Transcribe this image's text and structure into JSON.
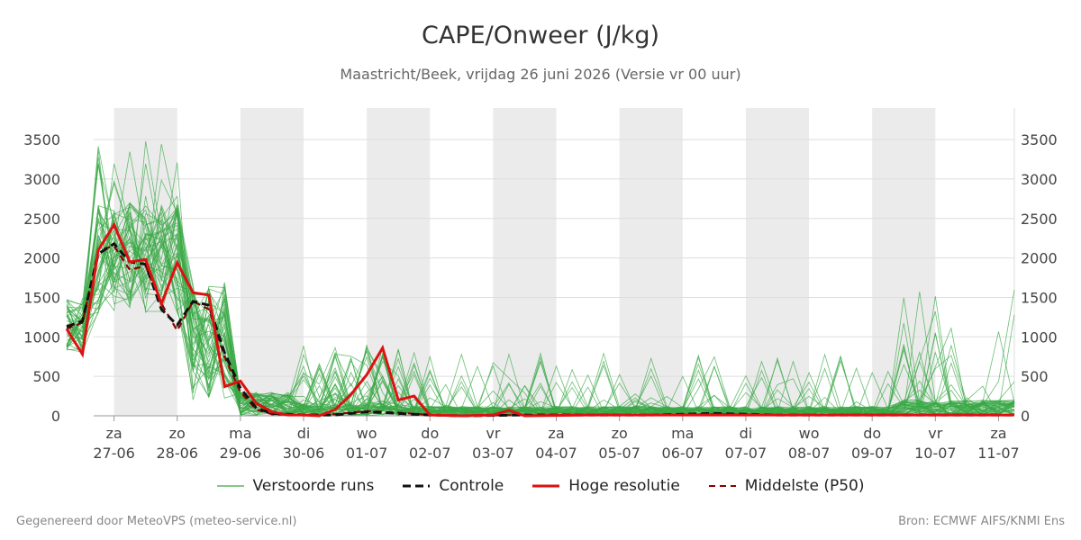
{
  "title": "CAPE/Onweer (J/kg)",
  "subtitle": "Maastricht/Beek, vrijdag 26 juni 2026 (Versie vr 00 uur)",
  "footer": {
    "left": "Gegenereerd door MeteoVPS (meteo-service.nl)",
    "right": "Bron: ECMWF AIFS/KNMI Ens"
  },
  "colors": {
    "ensemble": "#3aa845",
    "control": "#111111",
    "hires": "#dd1111",
    "median": "#8b0000",
    "shade": "#ebebeb",
    "grid": "#dddddd"
  },
  "legend": [
    {
      "key": "ensemble",
      "label": "Verstoorde runs"
    },
    {
      "key": "control",
      "label": "Controle"
    },
    {
      "key": "hires",
      "label": "Hoge resolutie"
    },
    {
      "key": "median",
      "label": "Middelste (P50)"
    }
  ],
  "chart_data": {
    "type": "line",
    "x_unit": "days since 26-06 00:00",
    "xlim": [
      0.75,
      15.75
    ],
    "ylim": [
      0,
      3900
    ],
    "yticks": [
      0,
      500,
      1000,
      1500,
      2000,
      2500,
      3000,
      3500
    ],
    "grid": true,
    "legend_position": "bottom",
    "shaded_days": [
      1.5,
      3.5,
      5.5,
      7.5,
      9.5,
      11.5,
      13.5
    ],
    "x_ticks": [
      {
        "x": 1.5,
        "day": "za",
        "date": "27-06"
      },
      {
        "x": 2.5,
        "day": "zo",
        "date": "28-06"
      },
      {
        "x": 3.5,
        "day": "ma",
        "date": "29-06"
      },
      {
        "x": 4.5,
        "day": "di",
        "date": "30-06"
      },
      {
        "x": 5.5,
        "day": "wo",
        "date": "01-07"
      },
      {
        "x": 6.5,
        "day": "do",
        "date": "02-07"
      },
      {
        "x": 7.5,
        "day": "vr",
        "date": "03-07"
      },
      {
        "x": 8.5,
        "day": "za",
        "date": "04-07"
      },
      {
        "x": 9.5,
        "day": "zo",
        "date": "05-07"
      },
      {
        "x": 10.5,
        "day": "ma",
        "date": "06-07"
      },
      {
        "x": 11.5,
        "day": "di",
        "date": "07-07"
      },
      {
        "x": 12.5,
        "day": "wo",
        "date": "08-07"
      },
      {
        "x": 13.5,
        "day": "do",
        "date": "09-07"
      },
      {
        "x": 14.5,
        "day": "vr",
        "date": "10-07"
      },
      {
        "x": 15.5,
        "day": "za",
        "date": "11-07"
      }
    ],
    "series": [
      {
        "name": "Hoge resolutie",
        "style": "hires",
        "x": [
          0.75,
          1.0,
          1.25,
          1.5,
          1.75,
          2.0,
          2.25,
          2.5,
          2.75,
          3.0,
          3.25,
          3.5,
          3.75,
          4.0,
          4.25,
          4.5,
          4.75,
          5.0,
          5.25,
          5.5,
          5.75,
          6.0,
          6.25,
          6.5,
          7.0,
          7.5,
          7.75,
          8.0,
          9.0,
          10.0,
          11.0,
          12.0,
          13.0,
          14.0,
          15.0,
          15.75
        ],
        "y": [
          1100,
          780,
          2100,
          2420,
          1950,
          1980,
          1420,
          1940,
          1560,
          1530,
          370,
          440,
          160,
          50,
          10,
          10,
          0,
          80,
          270,
          520,
          860,
          200,
          250,
          10,
          0,
          10,
          70,
          0,
          10,
          10,
          10,
          10,
          10,
          10,
          10,
          10
        ]
      },
      {
        "name": "Controle",
        "style": "control",
        "x": [
          0.75,
          1.0,
          1.25,
          1.5,
          1.75,
          2.0,
          2.25,
          2.5,
          2.75,
          3.0,
          3.25,
          3.5,
          3.75,
          4.0,
          4.5,
          5.0,
          5.5,
          6.0,
          6.5,
          7.0,
          8.0,
          9.0,
          10.0,
          11.0,
          12.0,
          13.0,
          14.0,
          15.0,
          15.75
        ],
        "y": [
          1130,
          1200,
          2050,
          2180,
          1950,
          1920,
          1350,
          1150,
          1450,
          1400,
          800,
          350,
          100,
          30,
          10,
          10,
          50,
          30,
          10,
          0,
          10,
          10,
          10,
          30,
          10,
          10,
          10,
          10,
          10
        ]
      },
      {
        "name": "Middelste (P50)",
        "style": "median",
        "x": [
          0.75,
          1.0,
          1.25,
          1.5,
          1.75,
          2.0,
          2.25,
          2.5,
          2.75,
          3.0,
          3.25,
          3.5,
          3.75,
          4.0,
          4.5,
          5.0,
          5.5,
          6.0,
          6.5,
          7.0,
          8.0,
          9.0,
          10.0,
          11.0,
          12.0,
          13.0,
          14.0,
          15.0,
          15.75
        ],
        "y": [
          1100,
          1180,
          2100,
          2150,
          1850,
          1900,
          1420,
          1080,
          1450,
          1350,
          750,
          300,
          80,
          20,
          10,
          20,
          60,
          40,
          10,
          0,
          10,
          10,
          10,
          20,
          10,
          10,
          10,
          10,
          10
        ]
      }
    ],
    "ensemble_members": 50
  }
}
